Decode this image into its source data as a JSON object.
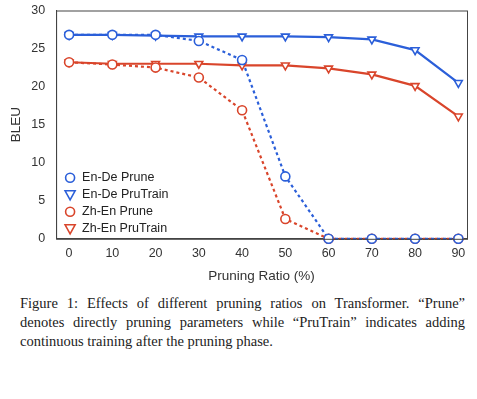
{
  "chart_data": {
    "type": "line",
    "x_label": "Pruning Ratio (%)",
    "y_label": "BLEU",
    "caption": "Figure 1: Effects of different pruning ratios on Transformer. “Prune” denotes directly pruning parameters while “PruTrain” indicates adding continuous training after the pruning phase.",
    "x": [
      0,
      10,
      20,
      30,
      40,
      50,
      60,
      70,
      80,
      90
    ],
    "series": [
      {
        "name": "En-De Prune",
        "color": "#2b5fd9",
        "marker": "circle",
        "line_style": "dashed",
        "values": [
          26.8,
          26.8,
          26.8,
          26.0,
          23.5,
          8.2,
          0,
          0,
          0,
          0
        ]
      },
      {
        "name": "En-De PruTrain",
        "color": "#2b5fd9",
        "marker": "triangle_down",
        "line_style": "solid",
        "values": [
          26.8,
          26.8,
          26.7,
          26.6,
          26.6,
          26.6,
          26.5,
          26.2,
          24.8,
          20.5
        ]
      },
      {
        "name": "Zh-En Prune",
        "color": "#d9452b",
        "marker": "circle",
        "line_style": "dashed",
        "values": [
          23.2,
          22.9,
          22.5,
          21.2,
          16.9,
          2.6,
          0,
          0,
          0,
          0
        ]
      },
      {
        "name": "Zh-En PruTrain",
        "color": "#d9452b",
        "marker": "triangle_down",
        "line_style": "solid",
        "values": [
          23.2,
          23.0,
          23.0,
          23.0,
          22.8,
          22.8,
          22.4,
          21.6,
          20.1,
          16.1
        ]
      }
    ],
    "xlim": [
      -3,
      92
    ],
    "xticks": [
      0,
      10,
      20,
      30,
      40,
      50,
      60,
      70,
      80,
      90
    ],
    "ylim": [
      0,
      30
    ],
    "yticks": [
      0,
      5,
      10,
      15,
      20,
      25,
      30
    ],
    "grid": false,
    "legend": "lower left"
  }
}
